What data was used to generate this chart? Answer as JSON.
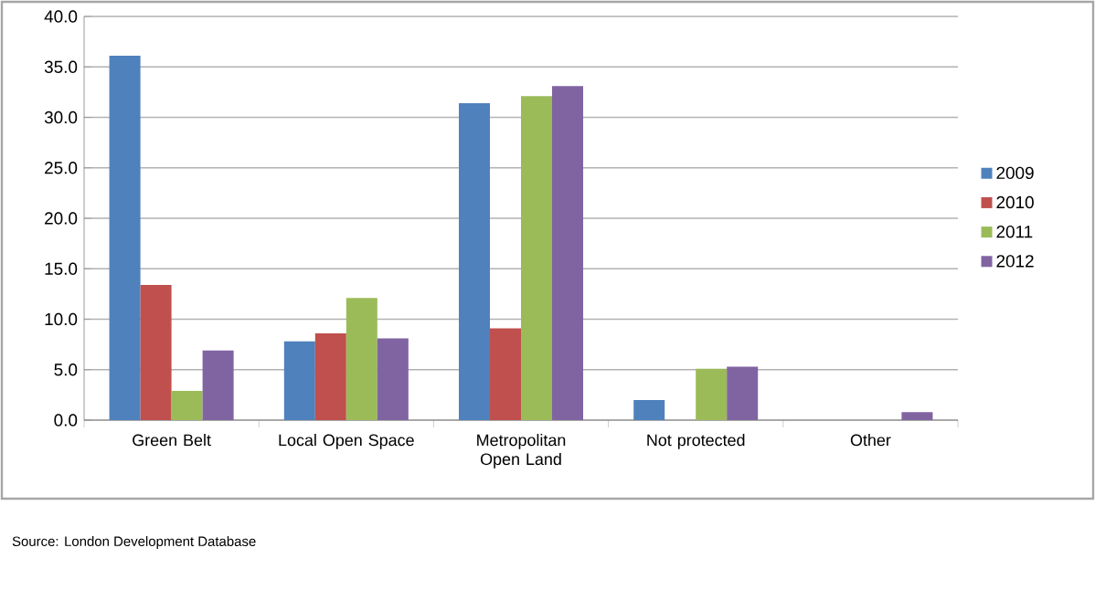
{
  "chart_data": {
    "type": "bar",
    "categories": [
      "Green Belt",
      "Local Open Space",
      "Metropolitan Open Land",
      "Not protected",
      "Other"
    ],
    "series": [
      {
        "name": "2009",
        "color": "#4f81bd",
        "values": [
          36.1,
          7.8,
          31.4,
          2.0,
          null
        ]
      },
      {
        "name": "2010",
        "color": "#c0504d",
        "values": [
          13.4,
          8.6,
          9.1,
          null,
          null
        ]
      },
      {
        "name": "2011",
        "color": "#9bbb59",
        "values": [
          2.9,
          12.1,
          32.1,
          5.1,
          null
        ]
      },
      {
        "name": "2012",
        "color": "#8064a2",
        "values": [
          6.9,
          8.1,
          33.1,
          5.3,
          0.8
        ]
      }
    ],
    "ylim": [
      0,
      40
    ],
    "yticks": [
      {
        "value": 0,
        "label": "0.0"
      },
      {
        "value": 5,
        "label": "5.0"
      },
      {
        "value": 10,
        "label": "10.0"
      },
      {
        "value": 15,
        "label": "15.0"
      },
      {
        "value": 20,
        "label": "20.0"
      },
      {
        "value": 25,
        "label": "25.0"
      },
      {
        "value": 30,
        "label": "30.0"
      },
      {
        "value": 35,
        "label": "35.0"
      },
      {
        "value": 40,
        "label": "40.0"
      }
    ],
    "grid": "y",
    "legend": "right",
    "annotations": [
      "Source: London Development Database"
    ]
  }
}
